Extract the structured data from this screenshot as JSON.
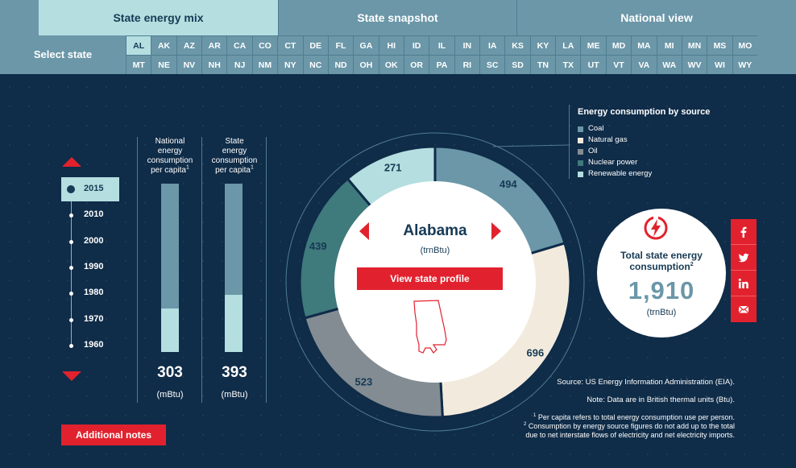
{
  "tabs": [
    {
      "label": "State energy mix",
      "active": true
    },
    {
      "label": "State snapshot",
      "active": false
    },
    {
      "label": "National view",
      "active": false
    }
  ],
  "state_bar": {
    "label": "Select state",
    "row1": [
      "AL",
      "AK",
      "AZ",
      "AR",
      "CA",
      "CO",
      "CT",
      "DE",
      "FL",
      "GA",
      "HI",
      "ID",
      "IL",
      "IN",
      "IA",
      "KS",
      "KY",
      "LA",
      "ME",
      "MD",
      "MA",
      "MI",
      "MN",
      "MS",
      "MO"
    ],
    "row2": [
      "MT",
      "NE",
      "NV",
      "NH",
      "NJ",
      "NM",
      "NY",
      "NC",
      "ND",
      "OH",
      "OK",
      "OR",
      "PA",
      "RI",
      "SC",
      "SD",
      "TN",
      "TX",
      "UT",
      "VT",
      "VA",
      "WA",
      "WV",
      "WI",
      "WY"
    ],
    "selected": "AL"
  },
  "timeline": {
    "years": [
      "2015",
      "2010",
      "2000",
      "1990",
      "1980",
      "1970",
      "1960"
    ],
    "selected": "2015"
  },
  "per_capita": {
    "national": {
      "label_lines": [
        "National",
        "energy",
        "consumption",
        "per capita"
      ],
      "footnote": "1",
      "value": "303",
      "unit": "(mBtu)",
      "fill_fraction": 0.26
    },
    "state": {
      "label_lines": [
        "State",
        "energy",
        "consumption",
        "per capita"
      ],
      "footnote": "1",
      "value": "393",
      "unit": "(mBtu)",
      "fill_fraction": 0.34
    }
  },
  "chart_data": {
    "type": "pie",
    "title": "Energy consumption by source",
    "categories": [
      "Coal",
      "Natural gas",
      "Oil",
      "Nuclear power",
      "Renewable energy"
    ],
    "values": [
      494,
      696,
      523,
      439,
      271
    ],
    "colors": [
      "#6b97a8",
      "#f2ebdd",
      "#838c93",
      "#3f7a7d",
      "#b4dee0"
    ],
    "label_colors": [
      "#163a55",
      "#163a55",
      "#163a55",
      "#163a55",
      "#163a55"
    ],
    "legend_placement": "top-right"
  },
  "center": {
    "state_name": "Alabama",
    "unit": "(trnBtu)",
    "profile_button": "View state profile"
  },
  "total": {
    "title_lines": [
      "Total state energy",
      "consumption"
    ],
    "footnote": "2",
    "value": "1,910",
    "unit": "(trnBtu)"
  },
  "social": [
    "facebook-icon",
    "twitter-icon",
    "linkedin-icon",
    "email-icon"
  ],
  "notes_button": "Additional notes",
  "source": "Source: US Energy Information Administration (EIA).",
  "note": "Note: Data are in British thermal units (Btu).",
  "footnotes": {
    "f1_num": "1",
    "f1": " Per capita refers to total energy consumption use per person.",
    "f2_num": "2",
    "f2a": " Consumption by energy source figures do not add up to the total",
    "f2b": "due to net interstate flows of electricity and net electricity imports."
  },
  "colors": {
    "accent": "#e1222e",
    "background": "#0f2c48",
    "tab": "#6b97a8",
    "tab_active": "#b4dee0"
  }
}
